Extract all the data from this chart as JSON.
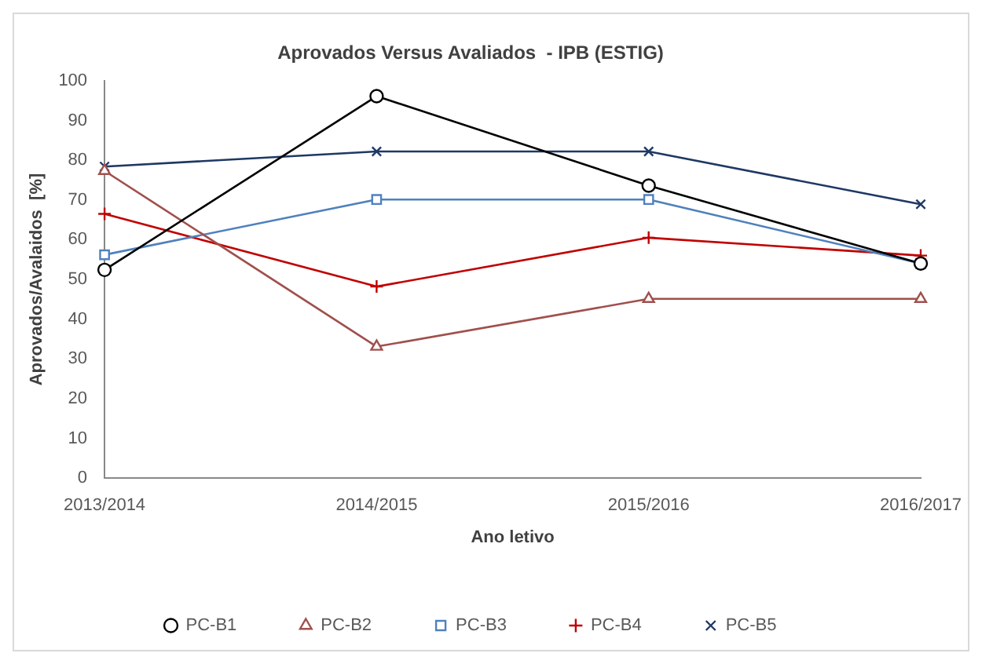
{
  "chart_data": {
    "type": "line",
    "title": "Aprovados Versus Avaliados  - IPB (ESTIG)",
    "xlabel": "Ano letivo",
    "ylabel": "Aprovados/Avalaidos  [%]",
    "categories": [
      "2013/2014",
      "2014/2015",
      "2015/2016",
      "2016/2017"
    ],
    "series": [
      {
        "name": "PC-B1",
        "color": "#000000",
        "marker": "circle",
        "values": [
          52.4,
          96.1,
          73.6,
          54.0
        ]
      },
      {
        "name": "PC-B2",
        "color": "#a0504d",
        "marker": "triangle",
        "values": [
          77.3,
          33.1,
          45.1,
          45.1
        ]
      },
      {
        "name": "PC-B3",
        "color": "#4f81bd",
        "marker": "square",
        "values": [
          56.2,
          70.1,
          70.1,
          54.0
        ]
      },
      {
        "name": "PC-B4",
        "color": "#c00000",
        "marker": "cross",
        "values": [
          66.5,
          48.2,
          60.5,
          56.0
        ]
      },
      {
        "name": "PC-B5",
        "color": "#1f3864",
        "marker": "x",
        "values": [
          78.4,
          82.2,
          82.2,
          68.9
        ]
      }
    ],
    "ylim": [
      0,
      100
    ],
    "yticks": [
      0,
      10,
      20,
      30,
      40,
      50,
      60,
      70,
      80,
      90,
      100
    ],
    "grid": false,
    "legend": "bottom"
  }
}
